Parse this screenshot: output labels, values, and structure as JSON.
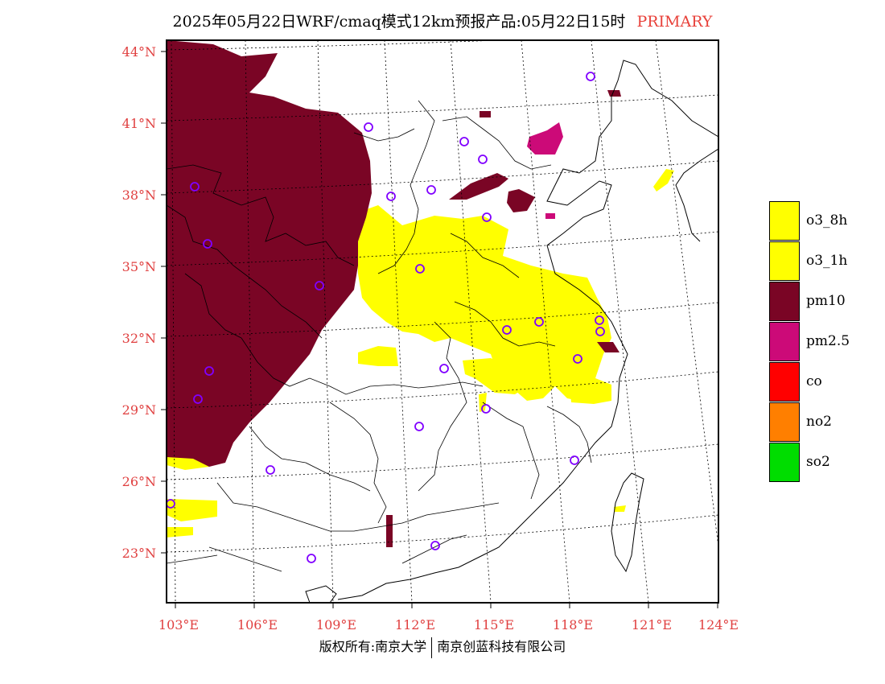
{
  "title": {
    "text": "2025年05月22日WRF/cmaq模式12km预报产品:05月22日15时",
    "tag": "PRIMARY"
  },
  "axes": {
    "lat_ticks": [
      "44°N",
      "41°N",
      "38°N",
      "35°N",
      "32°N",
      "29°N",
      "26°N",
      "23°N"
    ],
    "lon_ticks": [
      "103°E",
      "106°E",
      "109°E",
      "112°E",
      "115°E",
      "118°E",
      "121°E",
      "124°E"
    ]
  },
  "legend": [
    {
      "label": "o3_8h",
      "color": "#ffff00"
    },
    {
      "label": "o3_1h",
      "color": "#ffff00"
    },
    {
      "label": "pm10",
      "color": "#7a0525"
    },
    {
      "label": "pm2.5",
      "color": "#cc0a78"
    },
    {
      "label": "co",
      "color": "#ff0000"
    },
    {
      "label": "no2",
      "color": "#ff7f00"
    },
    {
      "label": "so2",
      "color": "#00dd00"
    }
  ],
  "footer": {
    "left": "版权所有:南京大学",
    "right": "南京创蓝科技有限公司"
  }
}
